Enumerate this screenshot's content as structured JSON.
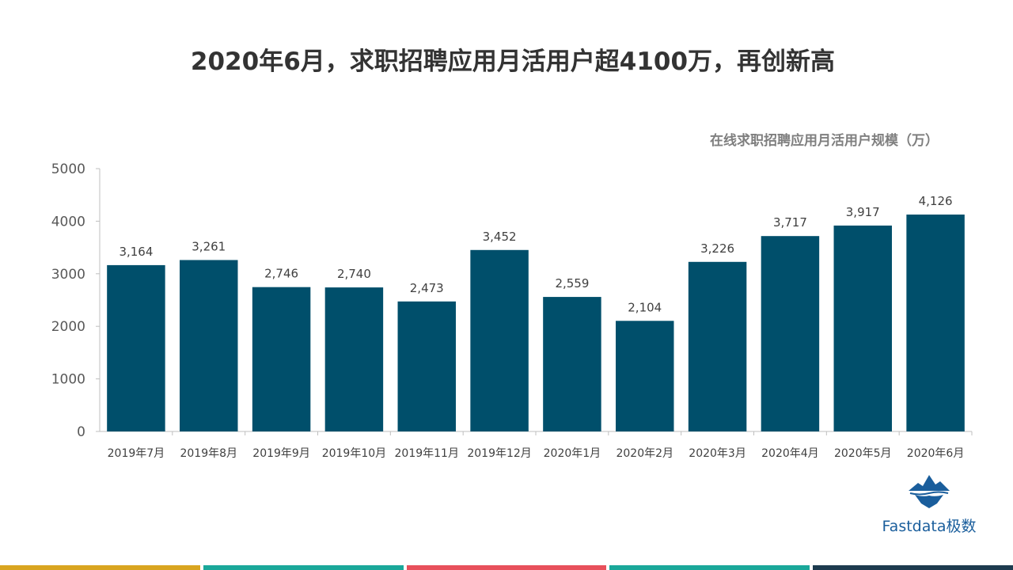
{
  "title": "2020年6月，求职招聘应用月活用户超4100万，再创新高",
  "brand": {
    "logo_text": "Fastdata极数",
    "logo_color": "#1a5e9c"
  },
  "bottom_stripe_colors": [
    "#d9a520",
    "#1aa89a",
    "#e8505b",
    "#1aa89a",
    "#1d3b4f"
  ],
  "chart_data": {
    "type": "bar",
    "title": "在线求职招聘应用月活用户规模（万）",
    "categories": [
      "2019年7月",
      "2019年8月",
      "2019年9月",
      "2019年10月",
      "2019年11月",
      "2019年12月",
      "2020年1月",
      "2020年2月",
      "2020年3月",
      "2020年4月",
      "2020年5月",
      "2020年6月"
    ],
    "values": [
      3164,
      3261,
      2746,
      2740,
      2473,
      3452,
      2559,
      2104,
      3226,
      3717,
      3917,
      4126
    ],
    "value_labels": [
      "3,164",
      "3,261",
      "2,746",
      "2,740",
      "2,473",
      "3,452",
      "2,559",
      "2,104",
      "3,226",
      "3,717",
      "3,917",
      "4,126"
    ],
    "ylim": [
      0,
      5000
    ],
    "yticks": [
      0,
      1000,
      2000,
      3000,
      4000,
      5000
    ],
    "bar_color": "#004f6b",
    "grid": false,
    "legend": "none"
  }
}
